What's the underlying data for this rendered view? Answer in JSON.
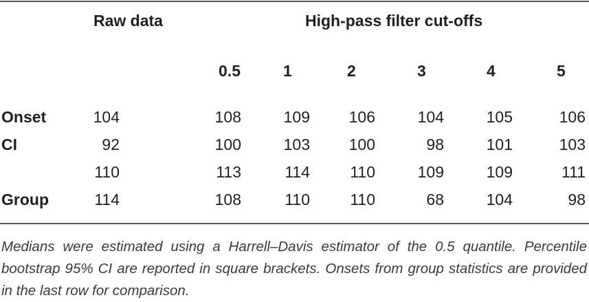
{
  "table": {
    "header_raw": "Raw data",
    "header_filter": "High-pass filter cut-offs",
    "cutoffs": [
      "0.5",
      "1",
      "2",
      "3",
      "4",
      "5"
    ],
    "rows": [
      {
        "label": "Onset",
        "raw": "104",
        "values": [
          "108",
          "109",
          "106",
          "104",
          "105",
          "106"
        ]
      },
      {
        "label": "CI",
        "raw": "92",
        "values": [
          "100",
          "103",
          "100",
          "98",
          "101",
          "103"
        ]
      },
      {
        "label": "",
        "raw": "110",
        "values": [
          "113",
          "114",
          "110",
          "109",
          "109",
          "111"
        ]
      },
      {
        "label": "Group",
        "raw": "114",
        "values": [
          "108",
          "110",
          "110",
          "68",
          "104",
          "98"
        ]
      }
    ]
  },
  "caption": "Medians were estimated using a Harrell–Davis estimator of the 0.5 quantile. Percentile bootstrap 95% CI are reported in square brackets. Onsets from group statistics are provided in the last row for comparison."
}
